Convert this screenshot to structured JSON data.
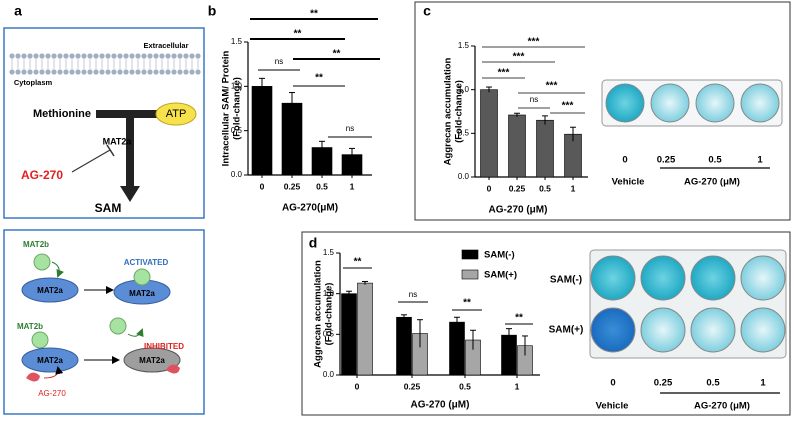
{
  "panel_labels": [
    "a",
    "b",
    "c",
    "d"
  ],
  "diagram": {
    "outside": "Extracellular",
    "inside": "Cytoplasm",
    "substrate": "Methionine",
    "cofactor": "ATP",
    "enzyme": "MAT2a",
    "inhibitor": "AG-270",
    "product": "SAM",
    "activated": {
      "partner": "MAT2b",
      "enzyme": "MAT2a",
      "complex": "MAT2a",
      "state": "ACTIVATED"
    },
    "inhibited": {
      "partner": "MAT2b",
      "enzyme": "MAT2a",
      "complex": "MAT2a",
      "state": "INHIBITED",
      "inhibitor": "AG-270"
    }
  },
  "chart_data": [
    {
      "type": "bar",
      "ylabel": [
        "Intracellular SAM/ Protein",
        "(Fold-change)"
      ],
      "xlabel": "AG-270(μM)",
      "categories": [
        "0",
        "0.25",
        "0.5",
        "1"
      ],
      "values": [
        1.0,
        0.81,
        0.31,
        0.23
      ],
      "errors": [
        0.09,
        0.12,
        0.07,
        0.07
      ],
      "color": "#000000",
      "ylim": [
        0,
        1.5
      ],
      "yticks": [
        {
          "value": 0,
          "label": "0.0"
        },
        0.5,
        {
          "value": 1,
          "label": "1.0"
        },
        1.5
      ],
      "annotations": [
        "**",
        "**",
        "**",
        "ns",
        "**",
        "ns"
      ]
    },
    {
      "type": "bar",
      "ylabel": [
        "Aggrecan accumulation",
        "(Fold-change)"
      ],
      "xlabel": "AG-270 (μM)",
      "categories": [
        "0",
        "0.25",
        "0.5",
        "1"
      ],
      "values": [
        1.0,
        0.71,
        0.65,
        0.49
      ],
      "errors": [
        0.03,
        0.02,
        0.05,
        0.08
      ],
      "color": "#595959",
      "ylim": [
        0,
        1.5
      ],
      "yticks": [
        {
          "value": 0,
          "label": "0.0"
        },
        0.5,
        {
          "value": 1,
          "label": "1.0"
        },
        1.5
      ],
      "annotations": [
        "***",
        "***",
        "***",
        "***",
        "ns",
        "***"
      ]
    },
    {
      "type": "grouped_bar",
      "ylabel": [
        "Aggrecan accumulation",
        "(Fold-change)"
      ],
      "xlabel": "AG-270 (μM)",
      "categories": [
        "0",
        "0.25",
        "0.5",
        "1"
      ],
      "series": [
        {
          "name": "SAM(-)",
          "color": "#000000",
          "values": [
            1.0,
            0.71,
            0.65,
            0.49
          ],
          "errors": [
            0.03,
            0.03,
            0.06,
            0.08
          ]
        },
        {
          "name": "SAM(+)",
          "color": "#a6a6a6",
          "values": [
            1.13,
            0.51,
            0.43,
            0.36
          ],
          "errors": [
            0.02,
            0.17,
            0.12,
            0.12
          ]
        }
      ],
      "ylim": [
        0,
        1.5
      ],
      "yticks": [
        {
          "value": 0,
          "label": "0.0"
        },
        0.5,
        {
          "value": 1,
          "label": "1.0"
        },
        1.5
      ],
      "annotations": [
        "**",
        "ns",
        "**",
        "**"
      ]
    }
  ],
  "well_images": [
    {
      "labels": [
        "0",
        "0.25",
        "0.5",
        "1"
      ],
      "vehicle": "Vehicle",
      "treatment": "AG-270 (μM)"
    },
    {
      "rows": [
        "SAM(-)",
        "SAM(+)"
      ],
      "labels": [
        "0",
        "0.25",
        "0.5",
        "1"
      ],
      "vehicle": "Vehicle",
      "treatment": "AG-270 (μM)"
    }
  ]
}
